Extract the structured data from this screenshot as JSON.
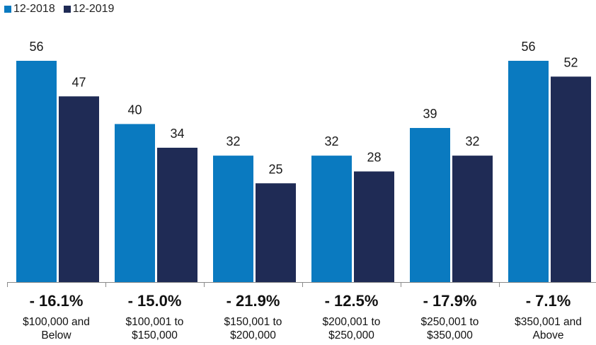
{
  "chart_data": {
    "type": "bar",
    "categories": [
      [
        "$100,000 and",
        "Below"
      ],
      [
        "$100,001 to",
        "$150,000"
      ],
      [
        "$150,001 to",
        "$200,000"
      ],
      [
        "$200,001 to",
        "$250,000"
      ],
      [
        "$250,001 to",
        "$350,000"
      ],
      [
        "$350,001 and",
        "Above"
      ]
    ],
    "series": [
      {
        "name": "12-2018",
        "color": "#0a7ac0",
        "values": [
          56,
          40,
          32,
          32,
          39,
          56
        ]
      },
      {
        "name": "12-2019",
        "color": "#1f2b55",
        "values": [
          47,
          34,
          25,
          28,
          32,
          52
        ]
      }
    ],
    "changes": [
      "- 16.1%",
      "- 15.0%",
      "- 21.9%",
      "- 12.5%",
      "- 17.9%",
      "- 7.1%"
    ],
    "title": "",
    "xlabel": "",
    "ylabel": "",
    "ylim": [
      0,
      60
    ],
    "legend_position": "top-left",
    "grid": false
  }
}
